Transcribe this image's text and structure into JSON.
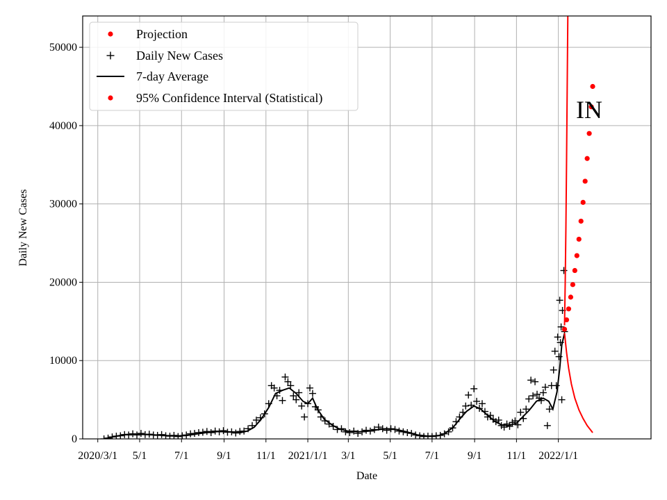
{
  "chart_data": {
    "type": "scatter",
    "title": "",
    "xlabel": "Date",
    "ylabel": "Daily New Cases",
    "annotation": "IN",
    "xlim": [
      "2020-02-08",
      "2022-05-16"
    ],
    "ylim": [
      0,
      54000
    ],
    "grid": true,
    "legend_position": "upper-left",
    "x_ticks": [
      {
        "date": "2020-03-01",
        "label": "2020/3/1"
      },
      {
        "date": "2020-05-01",
        "label": "5/1"
      },
      {
        "date": "2020-07-01",
        "label": "7/1"
      },
      {
        "date": "2020-09-01",
        "label": "9/1"
      },
      {
        "date": "2020-11-01",
        "label": "11/1"
      },
      {
        "date": "2021-01-01",
        "label": "2021/1/1"
      },
      {
        "date": "2021-03-01",
        "label": "3/1"
      },
      {
        "date": "2021-05-01",
        "label": "5/1"
      },
      {
        "date": "2021-07-01",
        "label": "7/1"
      },
      {
        "date": "2021-09-01",
        "label": "9/1"
      },
      {
        "date": "2021-11-01",
        "label": "11/1"
      },
      {
        "date": "2022-01-01",
        "label": "2022/1/1"
      }
    ],
    "y_ticks": [
      {
        "value": 0,
        "label": "0"
      },
      {
        "value": 10000,
        "label": "10000"
      },
      {
        "value": 20000,
        "label": "20000"
      },
      {
        "value": 30000,
        "label": "30000"
      },
      {
        "value": 40000,
        "label": "40000"
      },
      {
        "value": 50000,
        "label": "50000"
      }
    ],
    "legend": [
      {
        "label": "Projection",
        "marker": "dot",
        "color": "#ff0000"
      },
      {
        "label": "Daily New Cases",
        "marker": "plus",
        "color": "#000000"
      },
      {
        "label": "7-day Average",
        "marker": "line",
        "color": "#000000"
      },
      {
        "label": "95% Confidence Interval (Statistical)",
        "marker": "dot",
        "color": "#ff0000"
      }
    ],
    "series": [
      {
        "name": "7-day Average",
        "kind": "line",
        "color": "#000000",
        "points": [
          [
            "2020-03-10",
            0
          ],
          [
            "2020-03-25",
            300
          ],
          [
            "2020-04-10",
            550
          ],
          [
            "2020-04-25",
            600
          ],
          [
            "2020-05-10",
            550
          ],
          [
            "2020-05-25",
            500
          ],
          [
            "2020-06-10",
            420
          ],
          [
            "2020-06-25",
            380
          ],
          [
            "2020-07-10",
            450
          ],
          [
            "2020-07-25",
            650
          ],
          [
            "2020-08-10",
            850
          ],
          [
            "2020-08-25",
            950
          ],
          [
            "2020-09-10",
            900
          ],
          [
            "2020-09-25",
            800
          ],
          [
            "2020-10-05",
            1000
          ],
          [
            "2020-10-15",
            1500
          ],
          [
            "2020-10-25",
            2500
          ],
          [
            "2020-11-05",
            4000
          ],
          [
            "2020-11-15",
            5800
          ],
          [
            "2020-11-25",
            6200
          ],
          [
            "2020-12-05",
            6500
          ],
          [
            "2020-12-15",
            5800
          ],
          [
            "2020-12-25",
            4800
          ],
          [
            "2021-01-01",
            4500
          ],
          [
            "2021-01-08",
            5200
          ],
          [
            "2021-01-15",
            3800
          ],
          [
            "2021-01-25",
            2500
          ],
          [
            "2021-02-05",
            1800
          ],
          [
            "2021-02-15",
            1300
          ],
          [
            "2021-02-28",
            1000
          ],
          [
            "2021-03-15",
            900
          ],
          [
            "2021-03-31",
            1000
          ],
          [
            "2021-04-15",
            1200
          ],
          [
            "2021-04-25",
            1300
          ],
          [
            "2021-05-10",
            1200
          ],
          [
            "2021-05-25",
            900
          ],
          [
            "2021-06-10",
            500
          ],
          [
            "2021-06-25",
            350
          ],
          [
            "2021-07-10",
            400
          ],
          [
            "2021-07-20",
            700
          ],
          [
            "2021-08-01",
            1500
          ],
          [
            "2021-08-10",
            2500
          ],
          [
            "2021-08-20",
            3500
          ],
          [
            "2021-08-31",
            4200
          ],
          [
            "2021-09-10",
            3800
          ],
          [
            "2021-09-20",
            3000
          ],
          [
            "2021-10-01",
            2200
          ],
          [
            "2021-10-10",
            1800
          ],
          [
            "2021-10-20",
            1700
          ],
          [
            "2021-11-01",
            2000
          ],
          [
            "2021-11-10",
            2800
          ],
          [
            "2021-11-20",
            3700
          ],
          [
            "2021-11-30",
            4800
          ],
          [
            "2021-12-10",
            5200
          ],
          [
            "2021-12-18",
            4800
          ],
          [
            "2021-12-24",
            3800
          ],
          [
            "2021-12-30",
            6000
          ],
          [
            "2022-01-03",
            9000
          ],
          [
            "2022-01-06",
            12000
          ],
          [
            "2022-01-10",
            13500
          ]
        ]
      },
      {
        "name": "Daily New Cases",
        "kind": "markers",
        "marker": "plus",
        "color": "#000000",
        "points": [
          [
            "2020-03-10",
            0
          ],
          [
            "2020-03-16",
            100
          ],
          [
            "2020-03-22",
            250
          ],
          [
            "2020-03-28",
            350
          ],
          [
            "2020-04-03",
            400
          ],
          [
            "2020-04-09",
            550
          ],
          [
            "2020-04-15",
            500
          ],
          [
            "2020-04-21",
            650
          ],
          [
            "2020-04-27",
            500
          ],
          [
            "2020-05-03",
            700
          ],
          [
            "2020-05-09",
            550
          ],
          [
            "2020-05-15",
            600
          ],
          [
            "2020-05-21",
            500
          ],
          [
            "2020-05-27",
            450
          ],
          [
            "2020-06-02",
            550
          ],
          [
            "2020-06-08",
            400
          ],
          [
            "2020-06-14",
            350
          ],
          [
            "2020-06-20",
            450
          ],
          [
            "2020-06-26",
            300
          ],
          [
            "2020-07-02",
            400
          ],
          [
            "2020-07-08",
            500
          ],
          [
            "2020-07-14",
            650
          ],
          [
            "2020-07-20",
            700
          ],
          [
            "2020-07-26",
            800
          ],
          [
            "2020-08-01",
            850
          ],
          [
            "2020-08-07",
            950
          ],
          [
            "2020-08-13",
            800
          ],
          [
            "2020-08-19",
            1000
          ],
          [
            "2020-08-25",
            900
          ],
          [
            "2020-08-31",
            1050
          ],
          [
            "2020-09-06",
            850
          ],
          [
            "2020-09-12",
            900
          ],
          [
            "2020-09-18",
            750
          ],
          [
            "2020-09-24",
            950
          ],
          [
            "2020-09-30",
            1000
          ],
          [
            "2020-10-06",
            1300
          ],
          [
            "2020-10-12",
            1700
          ],
          [
            "2020-10-18",
            2400
          ],
          [
            "2020-10-24",
            2700
          ],
          [
            "2020-10-30",
            3200
          ],
          [
            "2020-11-05",
            4500
          ],
          [
            "2020-11-09",
            6800
          ],
          [
            "2020-11-13",
            6500
          ],
          [
            "2020-11-17",
            5500
          ],
          [
            "2020-11-21",
            6200
          ],
          [
            "2020-11-25",
            4900
          ],
          [
            "2020-11-29",
            7900
          ],
          [
            "2020-12-03",
            7300
          ],
          [
            "2020-12-07",
            6800
          ],
          [
            "2020-12-11",
            5500
          ],
          [
            "2020-12-15",
            5000
          ],
          [
            "2020-12-19",
            5900
          ],
          [
            "2020-12-23",
            4200
          ],
          [
            "2020-12-27",
            2800
          ],
          [
            "2021-01-01",
            4500
          ],
          [
            "2021-01-04",
            6500
          ],
          [
            "2021-01-08",
            5800
          ],
          [
            "2021-01-12",
            4100
          ],
          [
            "2021-01-16",
            3700
          ],
          [
            "2021-01-20",
            2800
          ],
          [
            "2021-01-26",
            2300
          ],
          [
            "2021-02-01",
            1900
          ],
          [
            "2021-02-07",
            1600
          ],
          [
            "2021-02-13",
            1200
          ],
          [
            "2021-02-19",
            1300
          ],
          [
            "2021-02-25",
            900
          ],
          [
            "2021-03-03",
            800
          ],
          [
            "2021-03-09",
            1000
          ],
          [
            "2021-03-15",
            700
          ],
          [
            "2021-03-21",
            900
          ],
          [
            "2021-03-27",
            1100
          ],
          [
            "2021-04-02",
            1000
          ],
          [
            "2021-04-08",
            1200
          ],
          [
            "2021-04-14",
            1500
          ],
          [
            "2021-04-20",
            1300
          ],
          [
            "2021-04-26",
            1100
          ],
          [
            "2021-05-02",
            1300
          ],
          [
            "2021-05-08",
            1200
          ],
          [
            "2021-05-14",
            1000
          ],
          [
            "2021-05-20",
            900
          ],
          [
            "2021-05-26",
            800
          ],
          [
            "2021-06-01",
            700
          ],
          [
            "2021-06-07",
            500
          ],
          [
            "2021-06-13",
            400
          ],
          [
            "2021-06-19",
            300
          ],
          [
            "2021-06-25",
            350
          ],
          [
            "2021-07-01",
            300
          ],
          [
            "2021-07-07",
            400
          ],
          [
            "2021-07-13",
            450
          ],
          [
            "2021-07-19",
            650
          ],
          [
            "2021-07-25",
            900
          ],
          [
            "2021-07-31",
            1400
          ],
          [
            "2021-08-05",
            2200
          ],
          [
            "2021-08-10",
            2800
          ],
          [
            "2021-08-15",
            3400
          ],
          [
            "2021-08-19",
            4200
          ],
          [
            "2021-08-23",
            5600
          ],
          [
            "2021-08-27",
            4300
          ],
          [
            "2021-08-31",
            6400
          ],
          [
            "2021-09-04",
            4800
          ],
          [
            "2021-09-08",
            3900
          ],
          [
            "2021-09-12",
            4500
          ],
          [
            "2021-09-16",
            3500
          ],
          [
            "2021-09-20",
            2800
          ],
          [
            "2021-09-24",
            3000
          ],
          [
            "2021-09-28",
            2500
          ],
          [
            "2021-10-02",
            2200
          ],
          [
            "2021-10-06",
            2400
          ],
          [
            "2021-10-10",
            1700
          ],
          [
            "2021-10-14",
            1500
          ],
          [
            "2021-10-18",
            1900
          ],
          [
            "2021-10-22",
            1600
          ],
          [
            "2021-10-26",
            2100
          ],
          [
            "2021-10-30",
            2300
          ],
          [
            "2021-11-03",
            1800
          ],
          [
            "2021-11-07",
            3400
          ],
          [
            "2021-11-11",
            2600
          ],
          [
            "2021-11-15",
            3800
          ],
          [
            "2021-11-19",
            5100
          ],
          [
            "2021-11-22",
            7500
          ],
          [
            "2021-11-25",
            5500
          ],
          [
            "2021-11-28",
            7300
          ],
          [
            "2021-12-01",
            5700
          ],
          [
            "2021-12-04",
            5200
          ],
          [
            "2021-12-07",
            4900
          ],
          [
            "2021-12-10",
            5900
          ],
          [
            "2021-12-13",
            6600
          ],
          [
            "2021-12-16",
            1700
          ],
          [
            "2021-12-19",
            3800
          ],
          [
            "2021-12-22",
            6800
          ],
          [
            "2021-12-25",
            8800
          ],
          [
            "2021-12-27",
            11200
          ],
          [
            "2021-12-29",
            6800
          ],
          [
            "2021-12-31",
            13000
          ],
          [
            "2022-01-02",
            10500
          ],
          [
            "2022-01-03",
            17700
          ],
          [
            "2022-01-04",
            12300
          ],
          [
            "2022-01-05",
            14300
          ],
          [
            "2022-01-06",
            5000
          ],
          [
            "2022-01-07",
            16400
          ],
          [
            "2022-01-09",
            21500
          ],
          [
            "2022-01-10",
            13700
          ]
        ]
      },
      {
        "name": "Projection",
        "kind": "dots",
        "color": "#ff0000",
        "points": [
          [
            "2022-01-10",
            14000
          ],
          [
            "2022-01-13",
            15200
          ],
          [
            "2022-01-16",
            16600
          ],
          [
            "2022-01-19",
            18100
          ],
          [
            "2022-01-22",
            19700
          ],
          [
            "2022-01-25",
            21500
          ],
          [
            "2022-01-28",
            23400
          ],
          [
            "2022-01-31",
            25500
          ],
          [
            "2022-02-03",
            27800
          ],
          [
            "2022-02-06",
            30200
          ],
          [
            "2022-02-09",
            32900
          ],
          [
            "2022-02-12",
            35800
          ],
          [
            "2022-02-15",
            39000
          ],
          [
            "2022-02-18",
            42400
          ],
          [
            "2022-02-20",
            45000
          ]
        ]
      },
      {
        "name": "95% Confidence Interval (Statistical)",
        "kind": "line",
        "color": "#ff0000",
        "points": [
          [
            "2022-01-10",
            14500
          ],
          [
            "2022-01-11",
            20000
          ],
          [
            "2022-01-12",
            27000
          ],
          [
            "2022-01-13",
            36000
          ],
          [
            "2022-01-14",
            46000
          ],
          [
            "2022-01-15",
            56000
          ]
        ]
      },
      {
        "name": "95% Confidence Interval (Statistical)",
        "kind": "line",
        "color": "#ff0000",
        "points": [
          [
            "2022-01-10",
            13500
          ],
          [
            "2022-01-13",
            11000
          ],
          [
            "2022-01-16",
            9000
          ],
          [
            "2022-01-20",
            7000
          ],
          [
            "2022-01-25",
            5200
          ],
          [
            "2022-01-31",
            3700
          ],
          [
            "2022-02-06",
            2600
          ],
          [
            "2022-02-12",
            1700
          ],
          [
            "2022-02-20",
            800
          ]
        ]
      }
    ]
  }
}
